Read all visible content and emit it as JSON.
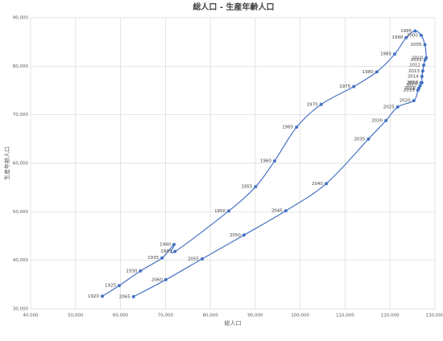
{
  "chart_data": {
    "type": "scatter-line",
    "title": "総人口 - 生産年齢人口",
    "x_label": "総人口",
    "y_label": "生産年齢人口",
    "color": "#4472c4",
    "grid": true,
    "xlim": [
      40000,
      130000
    ],
    "xticks": [
      {
        "value": 40000,
        "label": "40,000"
      },
      {
        "value": 50000,
        "label": "50,000"
      },
      {
        "value": 60000,
        "label": "60,000"
      },
      {
        "value": 70000,
        "label": "70,000"
      },
      {
        "value": 80000,
        "label": "80,000"
      },
      {
        "value": 90000,
        "label": "90,000"
      },
      {
        "value": 100000,
        "label": "100,000"
      },
      {
        "value": 110000,
        "label": "110,000"
      },
      {
        "value": 120000,
        "label": "120,000"
      },
      {
        "value": 130000,
        "label": "130,000"
      }
    ],
    "ylim": [
      30000,
      90000
    ],
    "yticks": [
      {
        "value": 30000,
        "label": "30,000"
      },
      {
        "value": 40000,
        "label": "40,000"
      },
      {
        "value": 50000,
        "label": "50,000"
      },
      {
        "value": 60000,
        "label": "60,000"
      },
      {
        "value": 70000,
        "label": "70,000"
      },
      {
        "value": 80000,
        "label": "80,000"
      },
      {
        "value": 90000,
        "label": "90,000"
      }
    ],
    "point_labels": [
      "1920",
      "1925",
      "1930",
      "1935",
      "1940",
      "1945",
      "1950",
      "1955",
      "1960",
      "1965",
      "1970",
      "1975",
      "1980",
      "1985",
      "1990",
      "1995",
      "2000",
      "2005",
      "2010",
      "2011",
      "2012",
      "2013",
      "2014",
      "2015",
      "2016",
      "2017",
      "2018",
      "2019",
      "2020",
      "2025",
      "2030",
      "2035",
      "2040",
      "2045",
      "2050",
      "2055",
      "2060",
      "2065"
    ],
    "x": [
      55963,
      59737,
      64450,
      69254,
      71933,
      72147,
      84115,
      90077,
      94302,
      99209,
      104665,
      111940,
      117060,
      121049,
      123611,
      125570,
      126926,
      127768,
      128057,
      127800,
      127500,
      127300,
      127100,
      127100,
      126900,
      126700,
      126400,
      126200,
      125300,
      121700,
      119100,
      115200,
      105800,
      96800,
      87500,
      78200,
      70100,
      62900
    ],
    "values": [
      32605,
      34792,
      37807,
      40484,
      43252,
      41821,
      50168,
      55167,
      60469,
      67444,
      72119,
      75807,
      78835,
      82506,
      85904,
      87260,
      86380,
      84422,
      81735,
      81300,
      80200,
      79000,
      77900,
      76600,
      76600,
      75960,
      75450,
      75070,
      72900,
      71600,
      68800,
      65000,
      55800,
      50200,
      45200,
      40300,
      36000,
      32500
    ]
  }
}
